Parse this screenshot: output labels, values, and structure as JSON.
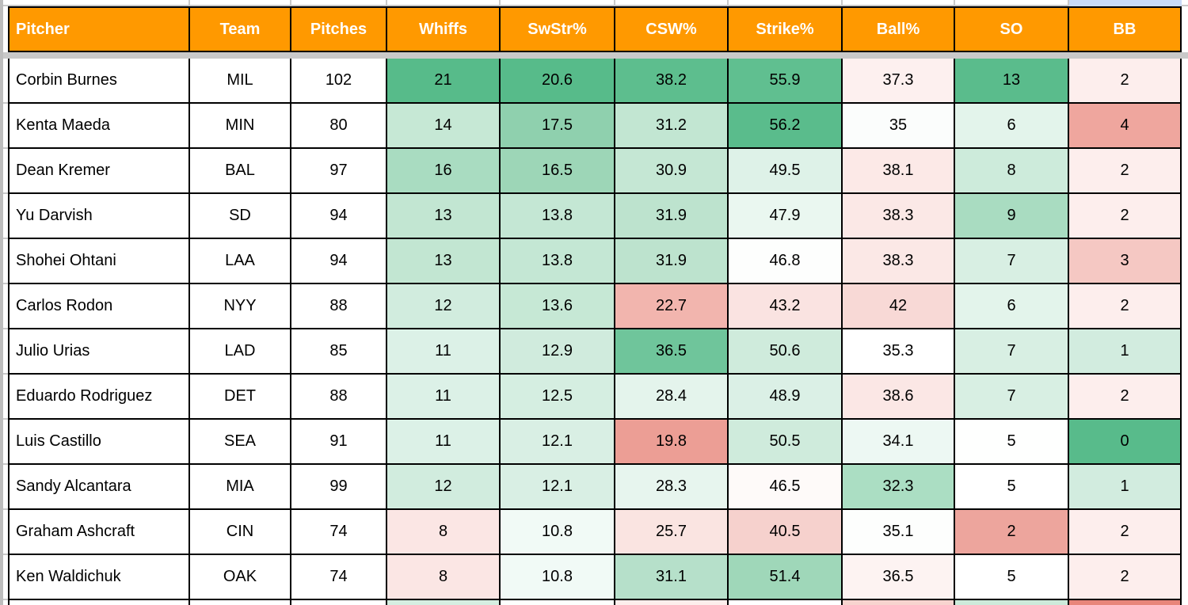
{
  "table": {
    "columns": [
      "Pitcher",
      "Team",
      "Pitches",
      "Whiffs",
      "SwStr%",
      "CSW%",
      "Strike%",
      "Ball%",
      "SO",
      "BB"
    ],
    "rows": [
      {
        "cells": [
          {
            "v": "Corbin Burnes",
            "bg": "#ffffff"
          },
          {
            "v": "MIL",
            "bg": "#ffffff"
          },
          {
            "v": "102",
            "bg": "#ffffff"
          },
          {
            "v": "21",
            "bg": "#57bb8a"
          },
          {
            "v": "20.6",
            "bg": "#57bb8a"
          },
          {
            "v": "38.2",
            "bg": "#5dbe8e"
          },
          {
            "v": "55.9",
            "bg": "#60bf90"
          },
          {
            "v": "37.3",
            "bg": "#fdf0ef"
          },
          {
            "v": "13",
            "bg": "#5abc8c"
          },
          {
            "v": "2",
            "bg": "#fdeeed"
          }
        ]
      },
      {
        "cells": [
          {
            "v": "Kenta Maeda",
            "bg": "#ffffff"
          },
          {
            "v": "MIN",
            "bg": "#ffffff"
          },
          {
            "v": "80",
            "bg": "#ffffff"
          },
          {
            "v": "14",
            "bg": "#c6e8d5"
          },
          {
            "v": "17.5",
            "bg": "#8fd0ae"
          },
          {
            "v": "31.2",
            "bg": "#c2e6d2"
          },
          {
            "v": "56.2",
            "bg": "#5abc8c"
          },
          {
            "v": "35",
            "bg": "#fbfdfc"
          },
          {
            "v": "6",
            "bg": "#e3f4eb"
          },
          {
            "v": "4",
            "bg": "#efa69e"
          }
        ]
      },
      {
        "cells": [
          {
            "v": "Dean Kremer",
            "bg": "#ffffff"
          },
          {
            "v": "BAL",
            "bg": "#ffffff"
          },
          {
            "v": "97",
            "bg": "#ffffff"
          },
          {
            "v": "16",
            "bg": "#a9dcc1"
          },
          {
            "v": "16.5",
            "bg": "#9dd6b7"
          },
          {
            "v": "30.9",
            "bg": "#c5e7d4"
          },
          {
            "v": "49.5",
            "bg": "#def2e8"
          },
          {
            "v": "38.1",
            "bg": "#fce9e7"
          },
          {
            "v": "8",
            "bg": "#cdebdb"
          },
          {
            "v": "2",
            "bg": "#fdeeed"
          }
        ]
      },
      {
        "cells": [
          {
            "v": "Yu Darvish",
            "bg": "#ffffff"
          },
          {
            "v": "SD",
            "bg": "#ffffff"
          },
          {
            "v": "94",
            "bg": "#ffffff"
          },
          {
            "v": "13",
            "bg": "#c2e6d2"
          },
          {
            "v": "13.8",
            "bg": "#c4e7d4"
          },
          {
            "v": "31.9",
            "bg": "#bde3ce"
          },
          {
            "v": "47.9",
            "bg": "#eaf7f0"
          },
          {
            "v": "38.3",
            "bg": "#fbe8e6"
          },
          {
            "v": "9",
            "bg": "#a9dcc1"
          },
          {
            "v": "2",
            "bg": "#fdeeed"
          }
        ]
      },
      {
        "cells": [
          {
            "v": "Shohei Ohtani",
            "bg": "#ffffff"
          },
          {
            "v": "LAA",
            "bg": "#ffffff"
          },
          {
            "v": "94",
            "bg": "#ffffff"
          },
          {
            "v": "13",
            "bg": "#c2e6d2"
          },
          {
            "v": "13.8",
            "bg": "#c4e7d4"
          },
          {
            "v": "31.9",
            "bg": "#bde3ce"
          },
          {
            "v": "46.8",
            "bg": "#fdfefd"
          },
          {
            "v": "38.3",
            "bg": "#fbe8e6"
          },
          {
            "v": "7",
            "bg": "#d8efe3"
          },
          {
            "v": "3",
            "bg": "#f5c8c3"
          }
        ]
      },
      {
        "cells": [
          {
            "v": "Carlos Rodon",
            "bg": "#ffffff"
          },
          {
            "v": "NYY",
            "bg": "#ffffff"
          },
          {
            "v": "88",
            "bg": "#ffffff"
          },
          {
            "v": "12",
            "bg": "#d1ecde"
          },
          {
            "v": "13.6",
            "bg": "#c6e8d5"
          },
          {
            "v": "22.7",
            "bg": "#f2b5ae"
          },
          {
            "v": "43.2",
            "bg": "#fae3e1"
          },
          {
            "v": "42",
            "bg": "#f8d9d6"
          },
          {
            "v": "6",
            "bg": "#e3f4eb"
          },
          {
            "v": "2",
            "bg": "#fdeeed"
          }
        ]
      },
      {
        "cells": [
          {
            "v": "Julio Urias",
            "bg": "#ffffff"
          },
          {
            "v": "LAD",
            "bg": "#ffffff"
          },
          {
            "v": "85",
            "bg": "#ffffff"
          },
          {
            "v": "11",
            "bg": "#dcf1e7"
          },
          {
            "v": "12.9",
            "bg": "#d0ebdd"
          },
          {
            "v": "36.5",
            "bg": "#6fc59b"
          },
          {
            "v": "50.6",
            "bg": "#cfebdc"
          },
          {
            "v": "35.3",
            "bg": "#ffffff"
          },
          {
            "v": "7",
            "bg": "#d8efe3"
          },
          {
            "v": "1",
            "bg": "#d2ecdf"
          }
        ]
      },
      {
        "cells": [
          {
            "v": "Eduardo Rodriguez",
            "bg": "#ffffff"
          },
          {
            "v": "DET",
            "bg": "#ffffff"
          },
          {
            "v": "88",
            "bg": "#ffffff"
          },
          {
            "v": "11",
            "bg": "#dcf1e7"
          },
          {
            "v": "12.5",
            "bg": "#d5eee1"
          },
          {
            "v": "28.4",
            "bg": "#e4f4ec"
          },
          {
            "v": "48.9",
            "bg": "#dbf0e6"
          },
          {
            "v": "38.6",
            "bg": "#fbe7e5"
          },
          {
            "v": "7",
            "bg": "#d8efe3"
          },
          {
            "v": "2",
            "bg": "#fdeeed"
          }
        ]
      },
      {
        "cells": [
          {
            "v": "Luis Castillo",
            "bg": "#ffffff"
          },
          {
            "v": "SEA",
            "bg": "#ffffff"
          },
          {
            "v": "91",
            "bg": "#ffffff"
          },
          {
            "v": "11",
            "bg": "#dcf1e7"
          },
          {
            "v": "12.1",
            "bg": "#d9efe4"
          },
          {
            "v": "19.8",
            "bg": "#ec9e95"
          },
          {
            "v": "50.5",
            "bg": "#cfebdc"
          },
          {
            "v": "34.1",
            "bg": "#edf8f3"
          },
          {
            "v": "5",
            "bg": "#fefffe"
          },
          {
            "v": "0",
            "bg": "#58bb8b"
          }
        ]
      },
      {
        "cells": [
          {
            "v": "Sandy Alcantara",
            "bg": "#ffffff"
          },
          {
            "v": "MIA",
            "bg": "#ffffff"
          },
          {
            "v": "99",
            "bg": "#ffffff"
          },
          {
            "v": "12",
            "bg": "#d1ecde"
          },
          {
            "v": "12.1",
            "bg": "#d9efe4"
          },
          {
            "v": "28.3",
            "bg": "#e7f5ee"
          },
          {
            "v": "46.5",
            "bg": "#fefaf9"
          },
          {
            "v": "32.3",
            "bg": "#abdec3"
          },
          {
            "v": "5",
            "bg": "#ffffff"
          },
          {
            "v": "1",
            "bg": "#d2ecdf"
          }
        ]
      },
      {
        "cells": [
          {
            "v": "Graham Ashcraft",
            "bg": "#ffffff"
          },
          {
            "v": "CIN",
            "bg": "#ffffff"
          },
          {
            "v": "74",
            "bg": "#ffffff"
          },
          {
            "v": "8",
            "bg": "#fbe6e4"
          },
          {
            "v": "10.8",
            "bg": "#f1faf6"
          },
          {
            "v": "25.7",
            "bg": "#fae4e1"
          },
          {
            "v": "40.5",
            "bg": "#f6d1cd"
          },
          {
            "v": "35.1",
            "bg": "#fdfefd"
          },
          {
            "v": "2",
            "bg": "#eda59d"
          },
          {
            "v": "2",
            "bg": "#fdeeed"
          }
        ]
      },
      {
        "cells": [
          {
            "v": "Ken Waldichuk",
            "bg": "#ffffff"
          },
          {
            "v": "OAK",
            "bg": "#ffffff"
          },
          {
            "v": "74",
            "bg": "#ffffff"
          },
          {
            "v": "8",
            "bg": "#fbe6e4"
          },
          {
            "v": "10.8",
            "bg": "#f1faf6"
          },
          {
            "v": "31.1",
            "bg": "#b6e0ca"
          },
          {
            "v": "51.4",
            "bg": "#9fd7b9"
          },
          {
            "v": "36.5",
            "bg": "#fdf3f2"
          },
          {
            "v": "5",
            "bg": "#ffffff"
          },
          {
            "v": "2",
            "bg": "#fdeeed"
          }
        ]
      }
    ],
    "partial_row_bgs": [
      "#ffffff",
      "#ffffff",
      "#ffffff",
      "#d5eee1",
      "#fdfefd",
      "#fdeeec",
      "#ffffff",
      "#f7d4cf",
      "#cdeada",
      "#e8857a"
    ]
  },
  "colors": {
    "header_bg": "#ff9900",
    "header_text": "#ffffff",
    "cell_border": "#000000",
    "frozen_divider": "#c9c9c9",
    "pane_edge": "#bdbdbd",
    "selection_highlight": "#c9daf8",
    "scale_max_green": "#57bb8a",
    "scale_min_red": "#e8857a"
  }
}
